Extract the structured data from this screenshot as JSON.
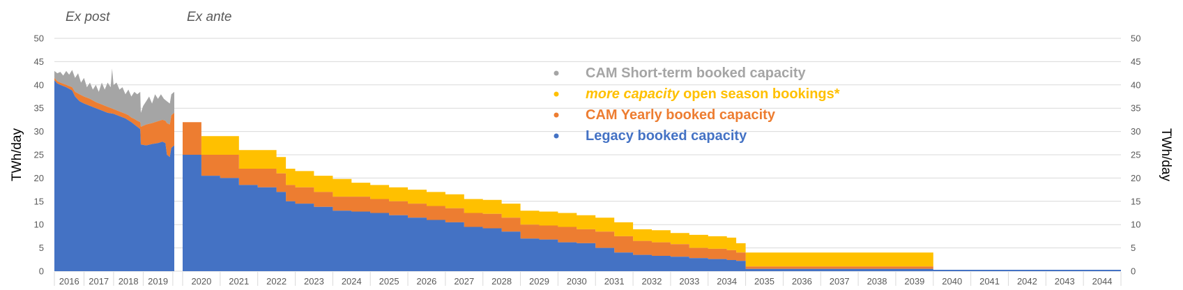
{
  "chart_data": {
    "type": "area",
    "ylabel_left": "TWh/day",
    "ylabel_right": "TWh/day",
    "ylim": [
      0,
      50
    ],
    "yticks": [
      0,
      5,
      10,
      15,
      20,
      25,
      30,
      35,
      40,
      45,
      50
    ],
    "grid": true,
    "legend_placement": "center-top",
    "colors": {
      "legacy": "#4472C4",
      "cam_yearly": "#ED7D31",
      "open_season": "#FFC000",
      "short_term": "#A5A5A5"
    },
    "sections": [
      {
        "label": "Ex post"
      },
      {
        "label": "Ex ante"
      }
    ],
    "legend": [
      {
        "key": "short_term",
        "parts": [
          {
            "text": "CAM Short-term booked capacity",
            "italic": false
          }
        ]
      },
      {
        "key": "open_season",
        "parts": [
          {
            "text": "more capacity",
            "italic": true
          },
          {
            "text": " open season bookings*",
            "italic": false
          }
        ]
      },
      {
        "key": "cam_yearly",
        "parts": [
          {
            "text": "CAM Yearly booked capacity",
            "italic": false
          }
        ]
      },
      {
        "key": "legacy",
        "parts": [
          {
            "text": "Legacy booked capacity",
            "italic": false
          }
        ]
      }
    ],
    "ex_post": {
      "years": [
        "2016",
        "2017",
        "2018",
        "2019"
      ],
      "x_range": [
        2015.8,
        2019.85
      ],
      "series": {
        "legacy": [
          [
            2015.8,
            41.0
          ],
          [
            2015.9,
            40.3
          ],
          [
            2016.0,
            40.0
          ],
          [
            2016.2,
            39.5
          ],
          [
            2016.4,
            38.8
          ],
          [
            2016.5,
            37.5
          ],
          [
            2016.65,
            36.5
          ],
          [
            2016.8,
            36.0
          ],
          [
            2017.0,
            35.5
          ],
          [
            2017.2,
            35.0
          ],
          [
            2017.4,
            34.5
          ],
          [
            2017.6,
            34.0
          ],
          [
            2017.8,
            33.8
          ],
          [
            2018.0,
            33.3
          ],
          [
            2018.2,
            32.8
          ],
          [
            2018.3,
            32.4
          ],
          [
            2018.4,
            32.0
          ],
          [
            2018.5,
            31.5
          ],
          [
            2018.6,
            31.0
          ],
          [
            2018.7,
            30.5
          ],
          [
            2018.72,
            27.2
          ],
          [
            2018.9,
            27.0
          ],
          [
            2019.1,
            27.3
          ],
          [
            2019.3,
            27.5
          ],
          [
            2019.45,
            27.8
          ],
          [
            2019.55,
            27.5
          ],
          [
            2019.6,
            25.0
          ],
          [
            2019.7,
            24.5
          ],
          [
            2019.75,
            26.5
          ],
          [
            2019.85,
            27.0
          ]
        ],
        "cam_yearly": [
          [
            2015.8,
            41.5
          ],
          [
            2015.9,
            40.8
          ],
          [
            2016.0,
            40.5
          ],
          [
            2016.2,
            40.0
          ],
          [
            2016.4,
            39.5
          ],
          [
            2016.5,
            38.5
          ],
          [
            2016.65,
            38.0
          ],
          [
            2016.8,
            37.5
          ],
          [
            2017.0,
            37.0
          ],
          [
            2017.2,
            36.3
          ],
          [
            2017.4,
            35.8
          ],
          [
            2017.6,
            35.3
          ],
          [
            2017.8,
            34.8
          ],
          [
            2018.0,
            34.3
          ],
          [
            2018.2,
            33.8
          ],
          [
            2018.3,
            33.5
          ],
          [
            2018.4,
            33.0
          ],
          [
            2018.5,
            32.7
          ],
          [
            2018.6,
            32.3
          ],
          [
            2018.7,
            32.0
          ],
          [
            2018.72,
            31.0
          ],
          [
            2018.9,
            31.5
          ],
          [
            2019.1,
            31.8
          ],
          [
            2019.3,
            32.2
          ],
          [
            2019.45,
            32.5
          ],
          [
            2019.55,
            32.3
          ],
          [
            2019.6,
            31.8
          ],
          [
            2019.7,
            31.5
          ],
          [
            2019.75,
            33.5
          ],
          [
            2019.85,
            34.0
          ]
        ],
        "short_term": [
          [
            2015.8,
            43.0
          ],
          [
            2015.9,
            42.5
          ],
          [
            2016.0,
            42.8
          ],
          [
            2016.1,
            42.0
          ],
          [
            2016.2,
            43.0
          ],
          [
            2016.3,
            42.2
          ],
          [
            2016.4,
            43.2
          ],
          [
            2016.5,
            41.5
          ],
          [
            2016.6,
            42.5
          ],
          [
            2016.7,
            40.5
          ],
          [
            2016.8,
            41.5
          ],
          [
            2016.9,
            39.5
          ],
          [
            2017.0,
            40.5
          ],
          [
            2017.1,
            39.0
          ],
          [
            2017.2,
            40.0
          ],
          [
            2017.3,
            38.5
          ],
          [
            2017.4,
            40.5
          ],
          [
            2017.5,
            39.0
          ],
          [
            2017.6,
            40.5
          ],
          [
            2017.7,
            39.5
          ],
          [
            2017.75,
            43.5
          ],
          [
            2017.8,
            40.0
          ],
          [
            2017.9,
            40.5
          ],
          [
            2018.0,
            39.0
          ],
          [
            2018.1,
            39.5
          ],
          [
            2018.2,
            38.0
          ],
          [
            2018.3,
            39.0
          ],
          [
            2018.4,
            37.5
          ],
          [
            2018.5,
            38.5
          ],
          [
            2018.6,
            38.0
          ],
          [
            2018.7,
            38.5
          ],
          [
            2018.72,
            34.0
          ],
          [
            2018.8,
            35.5
          ],
          [
            2018.9,
            36.5
          ],
          [
            2019.0,
            37.5
          ],
          [
            2019.1,
            36.0
          ],
          [
            2019.2,
            38.0
          ],
          [
            2019.3,
            37.0
          ],
          [
            2019.4,
            38.0
          ],
          [
            2019.5,
            37.0
          ],
          [
            2019.6,
            36.5
          ],
          [
            2019.7,
            36.0
          ],
          [
            2019.75,
            38.0
          ],
          [
            2019.85,
            38.5
          ]
        ]
      }
    },
    "ex_ante": {
      "years": [
        "2020",
        "2021",
        "2022",
        "2023",
        "2024",
        "2025",
        "2026",
        "2027",
        "2028",
        "2029",
        "2030",
        "2031",
        "2032",
        "2033",
        "2034",
        "2035",
        "2036",
        "2037",
        "2038",
        "2039",
        "2040",
        "2041",
        "2042",
        "2043",
        "2044"
      ],
      "x_range": [
        2019.75,
        2044.75
      ],
      "steps_x": [
        2019.75,
        2020.25,
        2020.75,
        2021.25,
        2021.75,
        2022.25,
        2022.5,
        2022.75,
        2023.25,
        2023.75,
        2024.25,
        2024.75,
        2025.25,
        2025.75,
        2026.25,
        2026.75,
        2027.25,
        2027.75,
        2028.25,
        2028.75,
        2029.25,
        2029.75,
        2030.25,
        2030.75,
        2031.25,
        2031.75,
        2032.25,
        2032.75,
        2033.25,
        2033.75,
        2034.25,
        2034.5,
        2034.75,
        2039.75,
        2044.75
      ],
      "series": {
        "legacy": [
          25.0,
          20.5,
          20.0,
          18.5,
          18.0,
          17.0,
          15.0,
          14.5,
          13.8,
          13.0,
          12.8,
          12.5,
          12.0,
          11.5,
          11.0,
          10.5,
          9.5,
          9.2,
          8.5,
          7.0,
          6.8,
          6.2,
          6.0,
          5.0,
          4.0,
          3.5,
          3.3,
          3.1,
          2.8,
          2.6,
          2.4,
          2.2,
          0.5,
          0.3
        ],
        "cam_yearly": [
          32.0,
          25.0,
          25.0,
          22.0,
          22.0,
          21.0,
          18.5,
          18.0,
          17.0,
          16.0,
          16.0,
          15.5,
          15.0,
          14.5,
          14.0,
          13.5,
          12.5,
          12.3,
          11.5,
          10.0,
          9.8,
          9.5,
          9.0,
          8.5,
          7.5,
          6.5,
          6.2,
          5.8,
          5.0,
          4.8,
          4.5,
          4.0,
          1.0,
          0.3
        ],
        "open_season": [
          32.0,
          29.0,
          29.0,
          26.0,
          26.0,
          24.5,
          22.0,
          21.5,
          20.5,
          19.8,
          19.0,
          18.5,
          18.0,
          17.5,
          17.0,
          16.5,
          15.5,
          15.3,
          14.5,
          13.0,
          12.8,
          12.5,
          12.0,
          11.5,
          10.5,
          9.0,
          8.8,
          8.2,
          7.8,
          7.5,
          7.2,
          6.0,
          4.0,
          0.3
        ]
      }
    }
  }
}
